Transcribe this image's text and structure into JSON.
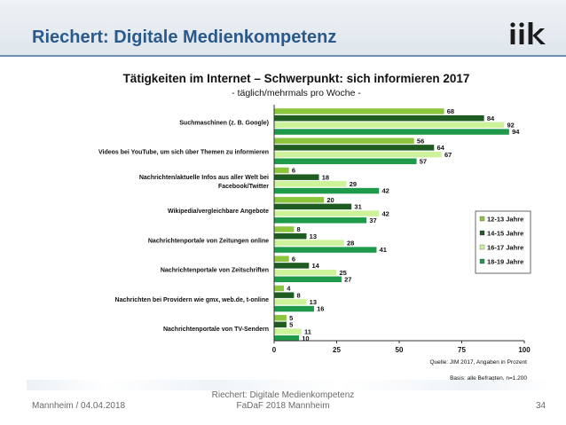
{
  "slide": {
    "title": "Riechert: Digitale Medienkompetenz",
    "logo_text": "iik",
    "footer_left": "Mannheim / 04.04.2018",
    "footer_center_line1": "Riechert: Digitale Medienkompetenz",
    "footer_center_line2": "FaDaF 2018 Mannheim",
    "page_number": "34"
  },
  "colors": {
    "header_title": "#2a5a8c",
    "series": [
      "#8cc63f",
      "#1e5c22",
      "#ccf29a",
      "#1f9a4a"
    ]
  },
  "chart_data": {
    "type": "bar",
    "orientation": "horizontal",
    "title": "Tätigkeiten im Internet – Schwerpunkt: sich informieren 2017",
    "subtitle": "- täglich/mehrmals pro Woche -",
    "categories": [
      [
        "Suchmaschinen (z. B. Google)"
      ],
      [
        "Videos bei YouTube, um sich über Themen zu informieren"
      ],
      [
        "Nachrichten/aktuelle Infos aus aller Welt bei",
        "Facebook/Twitter"
      ],
      [
        "Wikipedia/vergleichbare Angebote"
      ],
      [
        "Nachrichtenportale von Zeitungen online"
      ],
      [
        "Nachrichtenportale von Zeitschriften"
      ],
      [
        "Nachrichten bei Providern wie gmx, web.de, t-online"
      ],
      [
        "Nachrichtenportale von TV-Sendern"
      ]
    ],
    "series": [
      {
        "name": "12-13 Jahre",
        "values": [
          68,
          56,
          6,
          20,
          8,
          6,
          4,
          5
        ]
      },
      {
        "name": "14-15 Jahre",
        "values": [
          84,
          64,
          18,
          31,
          13,
          14,
          8,
          5
        ]
      },
      {
        "name": "16-17 Jahre",
        "values": [
          92,
          67,
          29,
          42,
          28,
          25,
          13,
          11
        ]
      },
      {
        "name": "18-19 Jahre",
        "values": [
          94,
          57,
          42,
          37,
          41,
          27,
          16,
          10
        ]
      }
    ],
    "xlim": [
      0,
      100
    ],
    "xticks": [
      0,
      25,
      50,
      75,
      100
    ],
    "legend_position": "right",
    "source": "Quelle: JIM 2017, Angaben in Prozent",
    "basis": "Basis: alle Befragten, n=1.200"
  }
}
